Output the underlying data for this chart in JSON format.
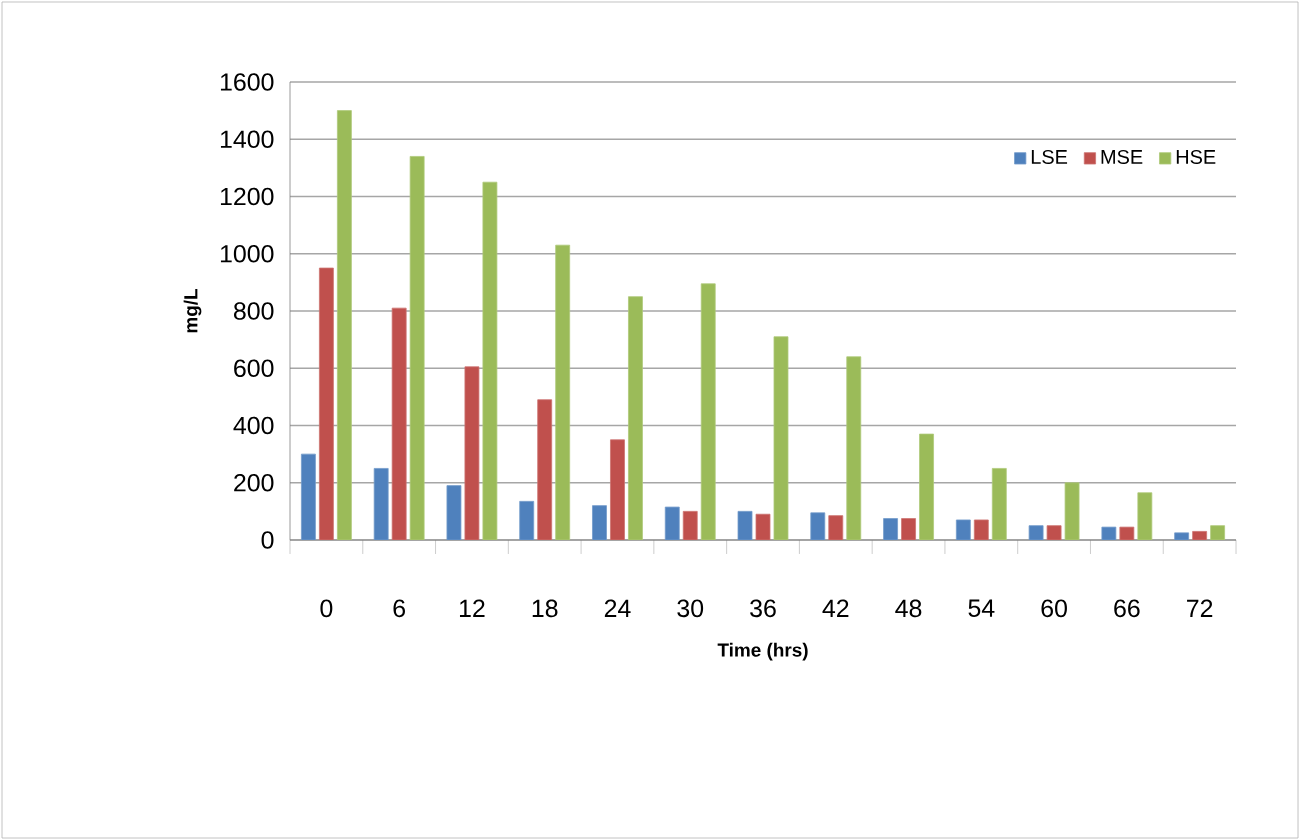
{
  "chart_data": {
    "type": "bar",
    "xlabel": "Time (hrs)",
    "ylabel": "mg/L",
    "categories": [
      "0",
      "6",
      "12",
      "18",
      "24",
      "30",
      "36",
      "42",
      "48",
      "54",
      "60",
      "66",
      "72"
    ],
    "series": [
      {
        "name": "LSE",
        "color": "#4f81bd",
        "values": [
          300,
          250,
          190,
          135,
          120,
          115,
          100,
          95,
          75,
          70,
          50,
          45,
          25
        ]
      },
      {
        "name": "MSE",
        "color": "#c0504d",
        "values": [
          950,
          810,
          605,
          490,
          350,
          100,
          90,
          85,
          75,
          70,
          50,
          45,
          30
        ]
      },
      {
        "name": "HSE",
        "color": "#9bbb59",
        "values": [
          1500,
          1340,
          1250,
          1030,
          850,
          895,
          710,
          640,
          370,
          250,
          200,
          165,
          50
        ]
      }
    ],
    "ylim": [
      0,
      1600
    ],
    "yticks": [
      0,
      200,
      400,
      600,
      800,
      1000,
      1200,
      1400,
      1600
    ],
    "grid": "y",
    "legend": "top right"
  }
}
